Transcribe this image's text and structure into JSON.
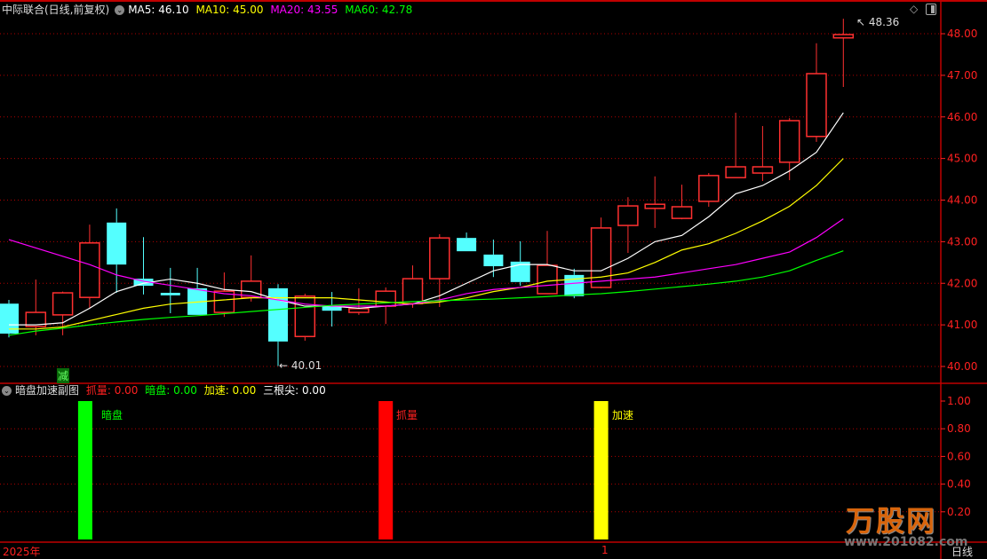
{
  "header": {
    "title": "中际联合(日线,前复权)",
    "ma5": "MA5: 46.10",
    "ma10": "MA10: 45.00",
    "ma20": "MA20: 43.55",
    "ma60": "MA60: 42.78"
  },
  "sub_header": {
    "title": "暗盘加速副图",
    "zhualiang_label": "抓量",
    "zhualiang_value": ": 0.00",
    "anpan_label": "暗盘",
    "anpan_value": ": 0.00",
    "jiasu_label": "加速",
    "jiasu_value": ": 0.00",
    "sangenjian_label": "三根尖",
    "sangenjian_value": ": 0.00"
  },
  "annotations": {
    "high_label": "48.36",
    "low_label": "40.01",
    "reduce_tag": "减",
    "bar_anpan": "暗盘",
    "bar_zhualiang": "抓量",
    "bar_jiasu": "加速"
  },
  "footer": {
    "year": "2025年",
    "month_marker": "1",
    "period": "日线"
  },
  "logo": {
    "name": "万股网",
    "url": "www.201082.com"
  },
  "colors": {
    "up": "#ff3030",
    "down": "#54ffff",
    "ma5": "#ffffff",
    "ma10": "#ffff00",
    "ma20": "#ff00ff",
    "ma60": "#00ff00",
    "axis": "#ff2020"
  },
  "chart_data": [
    {
      "type": "candlestick",
      "title": "中际联合(日线,前复权)",
      "ylim": [
        40.0,
        48.0
      ],
      "y_ticks": [
        "40.00",
        "41.00",
        "42.00",
        "43.00",
        "44.00",
        "45.00",
        "46.00",
        "47.00",
        "48.00"
      ],
      "grid": true,
      "ohlc": [
        [
          41.51,
          40.79,
          41.6,
          40.7
        ],
        [
          40.96,
          41.3,
          42.09,
          40.75
        ],
        [
          41.24,
          41.77,
          41.8,
          40.75
        ],
        [
          41.66,
          42.97,
          43.41,
          41.41
        ],
        [
          43.46,
          42.45,
          43.8,
          41.77
        ],
        [
          42.11,
          41.94,
          43.11,
          41.73
        ],
        [
          41.77,
          41.71,
          42.37,
          41.28
        ],
        [
          41.88,
          41.24,
          42.37,
          41.24
        ],
        [
          41.3,
          41.81,
          42.26,
          41.19
        ],
        [
          41.66,
          42.05,
          42.67,
          41.56
        ],
        [
          41.88,
          40.6,
          41.98,
          40.01
        ],
        [
          40.72,
          41.69,
          41.75,
          40.62
        ],
        [
          41.45,
          41.34,
          41.79,
          40.96
        ],
        [
          41.3,
          41.39,
          41.88,
          41.24
        ],
        [
          41.45,
          41.81,
          41.9,
          41.02
        ],
        [
          41.51,
          42.11,
          42.43,
          41.41
        ],
        [
          42.11,
          43.09,
          43.18,
          41.43
        ],
        [
          43.09,
          42.77,
          43.22,
          42.77
        ],
        [
          42.69,
          42.41,
          43.05,
          42.15
        ],
        [
          42.52,
          42.03,
          43.01,
          41.94
        ],
        [
          41.75,
          42.43,
          43.26,
          41.75
        ],
        [
          42.2,
          41.69,
          42.35,
          41.64
        ],
        [
          41.9,
          43.33,
          43.58,
          41.88
        ],
        [
          43.39,
          43.86,
          44.07,
          42.73
        ],
        [
          43.8,
          43.9,
          44.57,
          43.33
        ],
        [
          43.56,
          43.84,
          44.37,
          43.54
        ],
        [
          43.97,
          44.59,
          44.65,
          43.84
        ],
        [
          44.54,
          44.8,
          46.1,
          44.54
        ],
        [
          44.65,
          44.8,
          45.78,
          44.46
        ],
        [
          44.91,
          45.91,
          45.97,
          44.48
        ],
        [
          45.53,
          47.04,
          47.77,
          45.4
        ],
        [
          47.9,
          47.98,
          48.36,
          46.72
        ]
      ],
      "series": [
        {
          "name": "MA5",
          "values": [
            41.0,
            41.0,
            41.05,
            41.4,
            41.8,
            42.0,
            42.1,
            42.0,
            41.85,
            41.8,
            41.6,
            41.45,
            41.45,
            41.4,
            41.45,
            41.5,
            41.7,
            42.0,
            42.3,
            42.45,
            42.45,
            42.3,
            42.3,
            42.6,
            43.0,
            43.15,
            43.6,
            44.15,
            44.35,
            44.7,
            45.15,
            46.1
          ]
        },
        {
          "name": "MA10",
          "values": [
            40.9,
            40.9,
            40.95,
            41.1,
            41.25,
            41.4,
            41.5,
            41.55,
            41.6,
            41.65,
            41.65,
            41.65,
            41.65,
            41.6,
            41.55,
            41.5,
            41.55,
            41.65,
            41.8,
            41.9,
            42.05,
            42.1,
            42.15,
            42.25,
            42.5,
            42.8,
            42.95,
            43.2,
            43.5,
            43.85,
            44.35,
            45.0
          ]
        },
        {
          "name": "MA20",
          "values": [
            43.05,
            42.85,
            42.65,
            42.45,
            42.2,
            42.05,
            41.95,
            41.85,
            41.75,
            41.7,
            41.6,
            41.5,
            41.45,
            41.45,
            41.45,
            41.5,
            41.6,
            41.75,
            41.85,
            41.9,
            41.95,
            42.0,
            42.05,
            42.1,
            42.15,
            42.25,
            42.35,
            42.45,
            42.6,
            42.75,
            43.1,
            43.55
          ]
        },
        {
          "name": "MA60",
          "values": [
            40.75,
            40.85,
            40.92,
            41.0,
            41.07,
            41.13,
            41.18,
            41.22,
            41.27,
            41.32,
            41.37,
            41.42,
            41.47,
            41.5,
            41.53,
            41.56,
            41.58,
            41.6,
            41.62,
            41.65,
            41.68,
            41.72,
            41.75,
            41.8,
            41.86,
            41.92,
            41.98,
            42.05,
            42.15,
            42.3,
            42.55,
            42.78
          ]
        }
      ]
    },
    {
      "type": "bar",
      "title": "暗盘加速副图",
      "ylim": [
        0,
        1.0
      ],
      "y_ticks": [
        "0.20",
        "0.40",
        "0.60",
        "0.80",
        "1.00"
      ],
      "bars": [
        {
          "name": "暗盘",
          "candle_index": 3,
          "value": 1.0,
          "color": "#00ff00"
        },
        {
          "name": "抓量",
          "candle_index": 14,
          "value": 1.0,
          "color": "#ff0000"
        },
        {
          "name": "加速",
          "candle_index": 22,
          "value": 1.0,
          "color": "#ffff00"
        }
      ]
    }
  ]
}
